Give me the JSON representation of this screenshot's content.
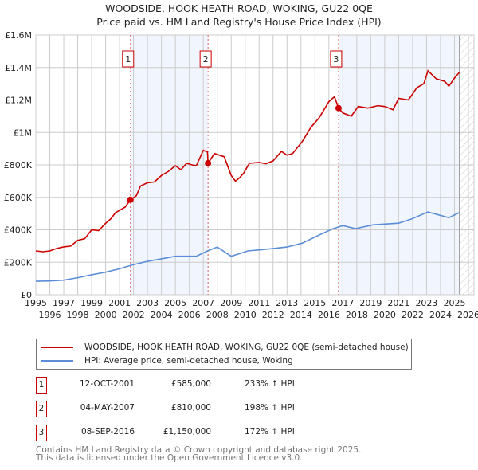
{
  "title": "WOODSIDE, HOOK HEATH ROAD, WOKING, GU22 0QE",
  "subtitle": "Price paid vs. HM Land Registry's House Price Index (HPI)",
  "chart_data": {
    "type": "line",
    "title": "WOODSIDE, HOOK HEATH ROAD, WOKING, GU22 0QE",
    "xlim": [
      1995,
      2026.4
    ],
    "ylim": [
      0,
      1600000
    ],
    "yticks": [
      0,
      200000,
      400000,
      600000,
      800000,
      1000000,
      1200000,
      1400000,
      1600000
    ],
    "ytick_labels": [
      "£0",
      "£200K",
      "£400K",
      "£600K",
      "£800K",
      "£1M",
      "£1.2M",
      "£1.4M",
      "£1.6M"
    ],
    "xticks": [
      "1995",
      "1996",
      "1997",
      "1998",
      "1999",
      "2000",
      "2001",
      "2002",
      "2003",
      "2004",
      "2005",
      "2006",
      "2007",
      "2008",
      "2009",
      "2010",
      "2011",
      "2012",
      "2013",
      "2014",
      "2015",
      "2016",
      "2017",
      "2018",
      "2019",
      "2020",
      "2021",
      "2022",
      "2023",
      "2024",
      "2025",
      "2026"
    ],
    "grid": true,
    "data_end": 2025.35,
    "series": [
      {
        "name": "WOODSIDE, HOOK HEATH ROAD, WOKING, GU22 0QE (semi-detached house)",
        "color": "#cc0000",
        "x": [
          1995,
          1995.5,
          1996,
          1996.5,
          1997,
          1997.5,
          1998,
          1998.5,
          1999,
          1999.5,
          2000,
          2000.4,
          2000.7,
          2001,
          2001.4,
          2001.78,
          2002.2,
          2002.5,
          2003,
          2003.5,
          2004,
          2004.5,
          2005,
          2005.4,
          2005.8,
          2006.2,
          2006.5,
          2007,
          2007.3,
          2007.34,
          2007.8,
          2008.5,
          2009,
          2009.3,
          2009.6,
          2009.9,
          2010.3,
          2011,
          2011.5,
          2012,
          2012.6,
          2013,
          2013.4,
          2014.1,
          2014.7,
          2015.3,
          2016,
          2016.4,
          2016.69,
          2017,
          2017.6,
          2018.1,
          2018.8,
          2019.5,
          2020,
          2020.6,
          2021,
          2021.7,
          2022.3,
          2022.8,
          2023.1,
          2023.7,
          2024.3,
          2024.6,
          2025,
          2025.35
        ],
        "y": [
          270000,
          265000,
          270000,
          285000,
          295000,
          300000,
          335000,
          345000,
          400000,
          395000,
          440000,
          470000,
          505000,
          520000,
          540000,
          585000,
          610000,
          670000,
          690000,
          695000,
          735000,
          760000,
          795000,
          770000,
          810000,
          800000,
          795000,
          890000,
          880000,
          810000,
          870000,
          850000,
          735000,
          700000,
          720000,
          750000,
          810000,
          815000,
          807000,
          825000,
          883000,
          860000,
          870000,
          945000,
          1030000,
          1090000,
          1190000,
          1220000,
          1150000,
          1120000,
          1100000,
          1160000,
          1150000,
          1165000,
          1160000,
          1140000,
          1210000,
          1200000,
          1275000,
          1300000,
          1380000,
          1330000,
          1315000,
          1285000,
          1335000,
          1370000
        ]
      },
      {
        "name": "HPI: Average price, semi-detached house, Woking",
        "color": "#5b8ed6",
        "x": [
          1995,
          1996,
          1997,
          1998,
          1999,
          2000,
          2001,
          2001.8,
          2003,
          2004,
          2005,
          2006.5,
          2007.3,
          2008,
          2009,
          2010.2,
          2011.5,
          2013,
          2014.1,
          2015.3,
          2016.3,
          2017,
          2017.9,
          2019.2,
          2021,
          2021.9,
          2023.1,
          2024.6,
          2025.35
        ],
        "y": [
          83000,
          85000,
          90000,
          105000,
          123000,
          139000,
          160000,
          181000,
          206000,
          221000,
          237000,
          237000,
          270000,
          294000,
          237000,
          270000,
          280000,
          294000,
          318000,
          368000,
          407000,
          426000,
          407000,
          431000,
          441000,
          466000,
          510000,
          475000,
          506000
        ]
      }
    ],
    "sales": [
      {
        "label": "1",
        "date": "12-OCT-2001",
        "x": 2001.78,
        "price": 585000,
        "price_label": "£585,000",
        "hpi": "233% ↑ HPI"
      },
      {
        "label": "2",
        "date": "04-MAY-2007",
        "x": 2007.34,
        "price": 810000,
        "price_label": "£810,000",
        "hpi": "198% ↑ HPI"
      },
      {
        "label": "3",
        "date": "08-SEP-2016",
        "x": 2016.69,
        "price": 1150000,
        "price_label": "£1,150,000",
        "hpi": "172% ↑ HPI"
      }
    ]
  },
  "legend": {
    "property": "WOODSIDE, HOOK HEATH ROAD, WOKING, GU22 0QE (semi-detached house)",
    "hpi": "HPI: Average price, semi-detached house, Woking"
  },
  "footer": {
    "line1": "Contains HM Land Registry data © Crown copyright and database right 2025.",
    "line2": "This data is licensed under the Open Government Licence v3.0."
  }
}
